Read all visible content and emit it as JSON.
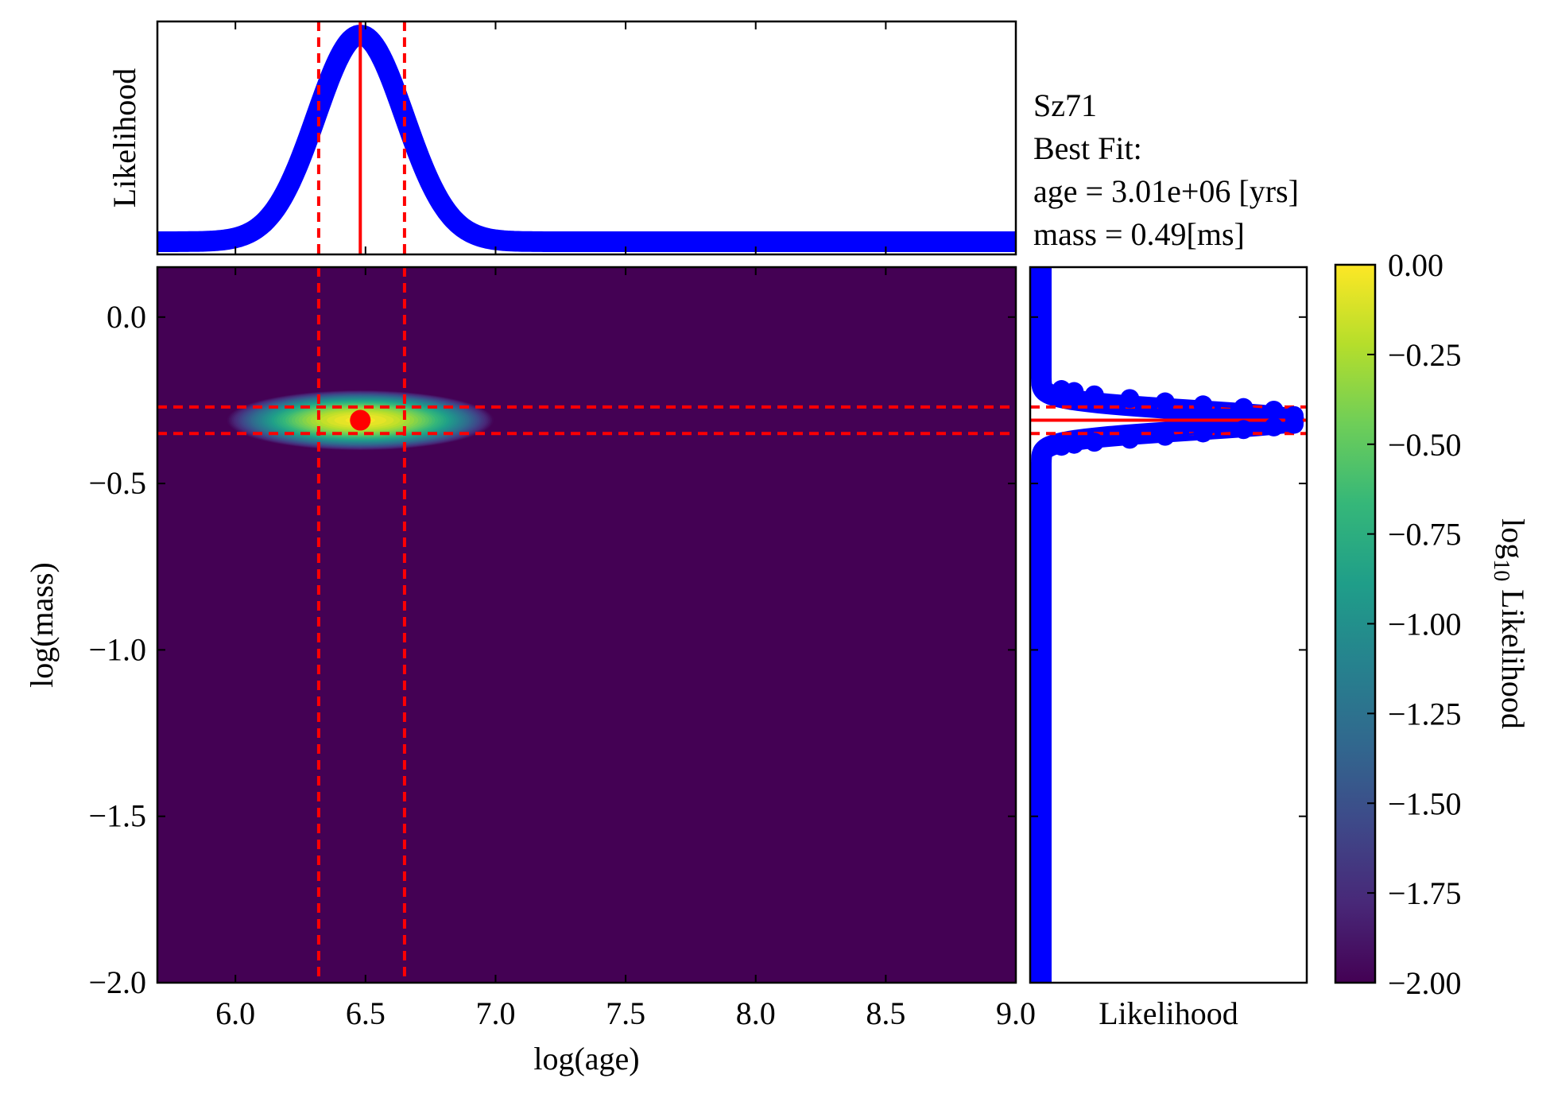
{
  "info": {
    "object": "Sz71",
    "best_fit": "Best Fit:",
    "age_line": "age = 3.01e+06 [yrs]",
    "mass_line": "mass = 0.49[ms]"
  },
  "colors": {
    "heatmap_low": "#440154",
    "marginal": "#0000ff",
    "marker": "#ff0000",
    "viridis": [
      "#440154",
      "#482878",
      "#3e4989",
      "#31688e",
      "#26828e",
      "#1f9e89",
      "#35b779",
      "#6ece58",
      "#b5de2b",
      "#fde725"
    ]
  },
  "chart_data": [
    {
      "type": "heatmap",
      "xlabel": "log(age)",
      "ylabel": "log(mass)",
      "xlim": [
        5.7,
        9.0
      ],
      "ylim": [
        -2.0,
        0.15
      ],
      "xticks": [
        6.0,
        6.5,
        7.0,
        7.5,
        8.0,
        8.5,
        9.0
      ],
      "xtick_labels": [
        "6.0",
        "6.5",
        "7.0",
        "7.5",
        "8.0",
        "8.5",
        "9.0"
      ],
      "yticks": [
        0.0,
        -0.5,
        -1.0,
        -1.5,
        -2.0
      ],
      "ytick_labels": [
        "0.0",
        "−0.5",
        "−1.0",
        "−1.5",
        "−2.0"
      ],
      "peak": {
        "x": 6.48,
        "y": -0.31
      },
      "spread": {
        "x": 0.17,
        "y": 0.03
      },
      "best_fit_point": {
        "x": 6.48,
        "y": -0.31
      },
      "x_interval_dashed": [
        6.32,
        6.65
      ],
      "y_interval_dashed": [
        -0.27,
        -0.35
      ]
    },
    {
      "type": "line",
      "name": "age marginal",
      "ylabel": "Likelihood",
      "xlim": [
        5.7,
        9.0
      ],
      "peak_x": 6.48,
      "sigma": 0.17,
      "solid_x": 6.48,
      "dashed_x": [
        6.32,
        6.65
      ]
    },
    {
      "type": "line",
      "name": "mass marginal",
      "xlabel": "Likelihood",
      "ylim": [
        -2.0,
        0.15
      ],
      "peak_y": -0.31,
      "sigma": 0.03,
      "solid_y": -0.31,
      "dashed_y": [
        -0.27,
        -0.35
      ],
      "points_upper": [
        [
          0.08,
          -0.218
        ],
        [
          0.13,
          -0.224
        ],
        [
          0.21,
          -0.234
        ],
        [
          0.35,
          -0.245
        ],
        [
          0.49,
          -0.255
        ],
        [
          0.64,
          -0.264
        ],
        [
          0.8,
          -0.272
        ],
        [
          0.92,
          -0.28
        ],
        [
          1.0,
          -0.296
        ]
      ],
      "points_lower": [
        [
          0.08,
          -0.388
        ],
        [
          0.13,
          -0.382
        ],
        [
          0.21,
          -0.376
        ],
        [
          0.35,
          -0.367
        ],
        [
          0.49,
          -0.358
        ],
        [
          0.64,
          -0.348
        ],
        [
          0.8,
          -0.338
        ],
        [
          0.92,
          -0.33
        ],
        [
          1.0,
          -0.322
        ]
      ]
    },
    {
      "type": "colorbar",
      "label": "log",
      "label_sub": "10",
      "label_rest": " Likelihood",
      "range": [
        -2.0,
        0.0
      ],
      "ticks": [
        0.0,
        -0.25,
        -0.5,
        -0.75,
        -1.0,
        -1.25,
        -1.5,
        -1.75,
        -2.0
      ],
      "tick_labels": [
        "0.00",
        "−0.25",
        "−0.50",
        "−0.75",
        "−1.00",
        "−1.25",
        "−1.50",
        "−1.75",
        "−2.00"
      ]
    }
  ]
}
